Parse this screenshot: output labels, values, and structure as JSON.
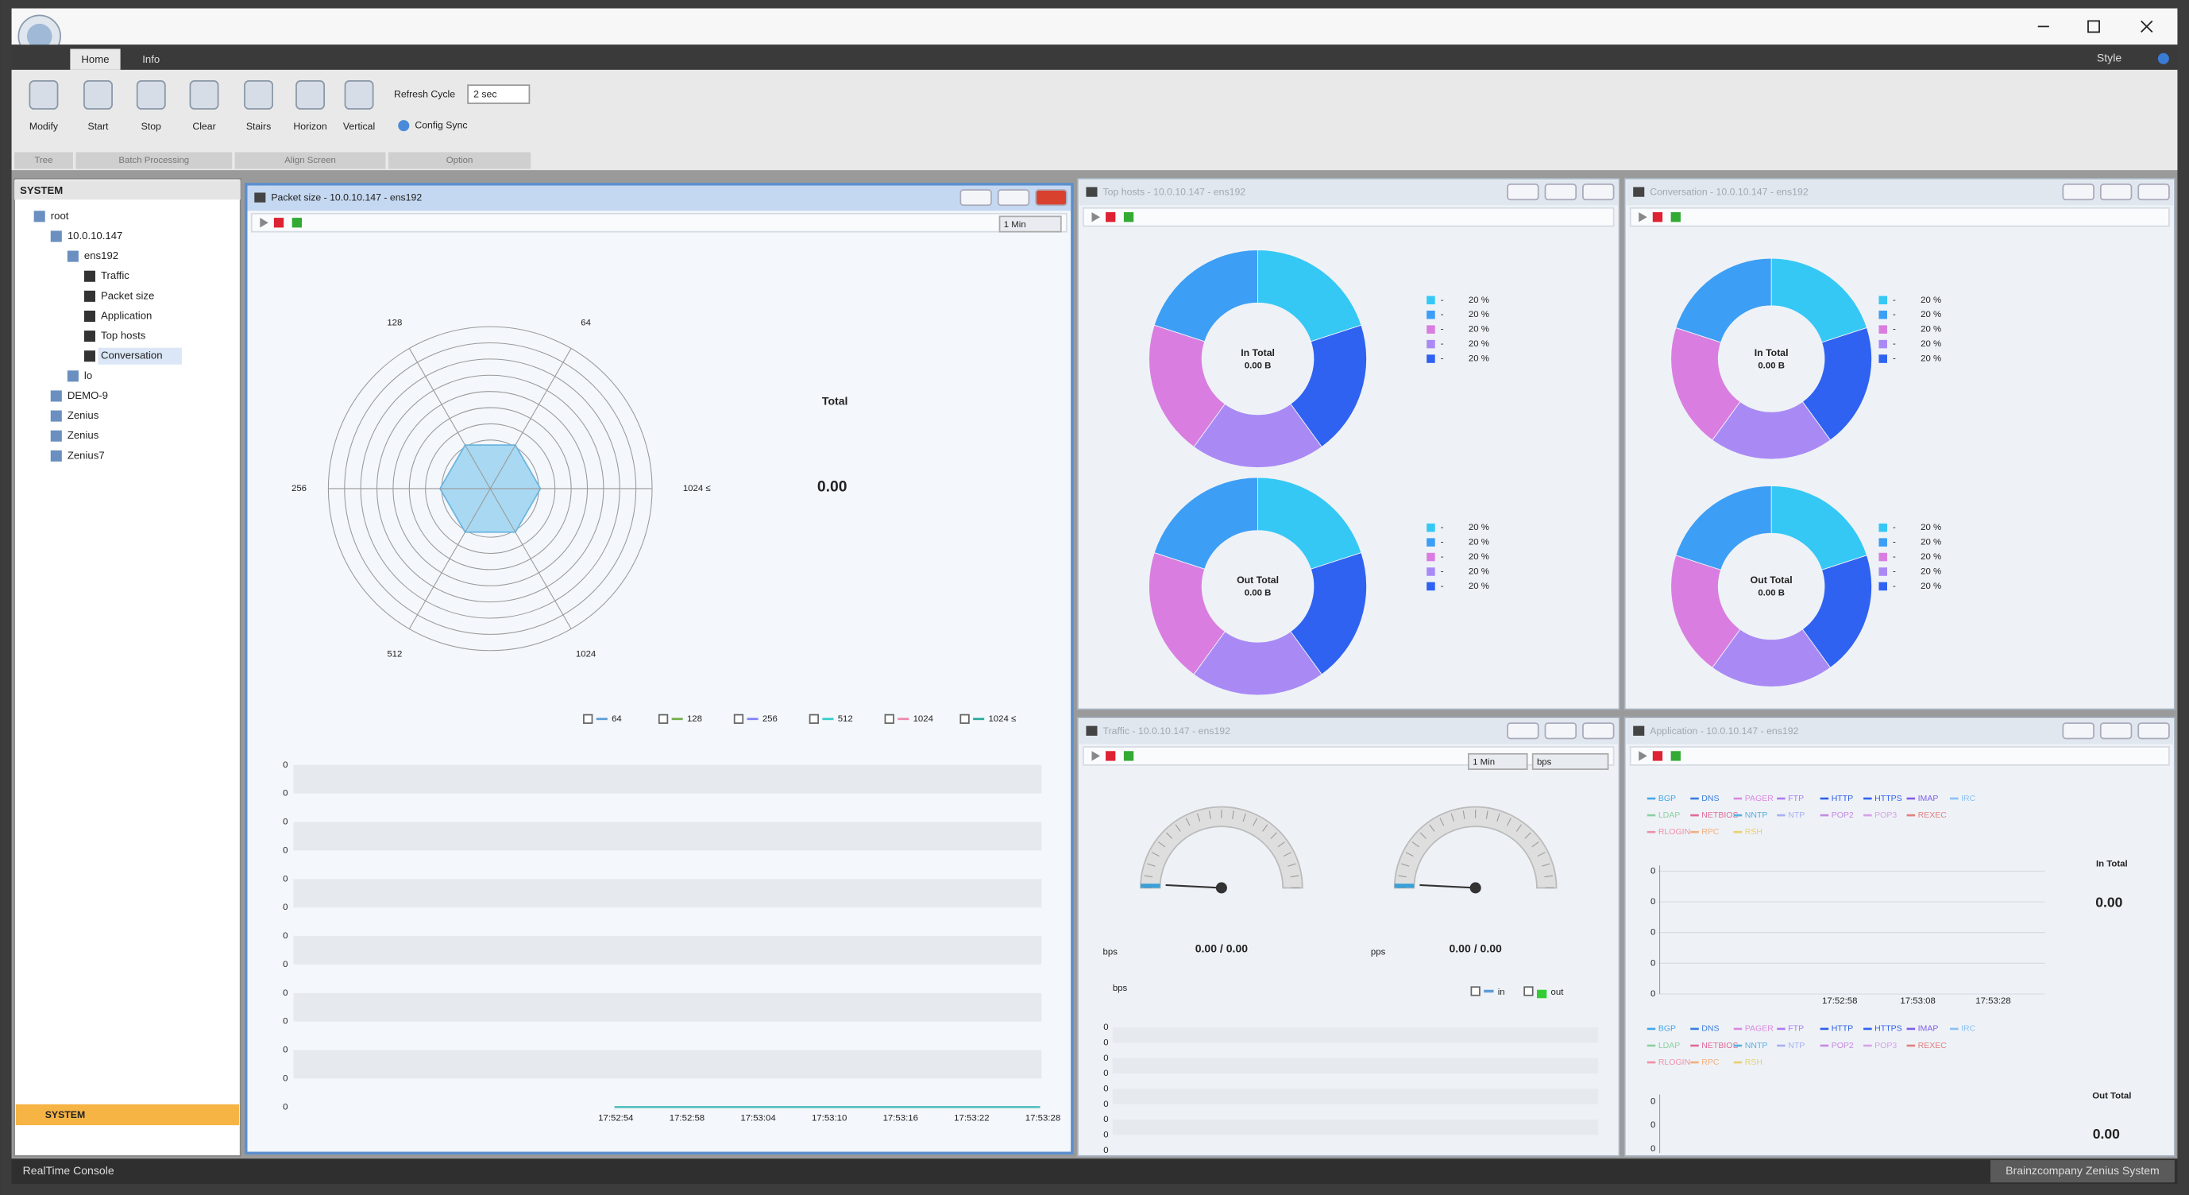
{
  "window": {
    "style_menu": "Style"
  },
  "ribbon": {
    "tabs": [
      "Home",
      "Info"
    ],
    "buttons": [
      "Modify",
      "Start",
      "Stop",
      "Clear",
      "Stairs",
      "Horizon",
      "Vertical"
    ],
    "refresh_label": "Refresh Cycle",
    "refresh_value": "2 sec",
    "config_sync": "Config Sync",
    "groups": [
      "Tree",
      "Batch Processing",
      "Align Screen",
      "Option"
    ]
  },
  "sidebar": {
    "header": "SYSTEM",
    "tree": [
      "root",
      "10.0.10.147",
      "ens192",
      "Traffic",
      "Packet size",
      "Application",
      "Top hosts",
      "Conversation",
      "lo",
      "DEMO-9",
      "Zenius",
      "Zenius",
      "Zenius7"
    ],
    "footer": "SYSTEM"
  },
  "packet_size": {
    "title": "Packet size - 10.0.10.147 - ens192",
    "interval": "1 Min",
    "radar_labels": [
      "64",
      "128",
      "256",
      "512",
      "1024",
      "1024 ≤"
    ],
    "total_label": "Total",
    "total_value": "0.00",
    "legend": [
      "64",
      "128",
      "256",
      "512",
      "1024",
      "1024 ≤"
    ],
    "yticks": [
      "0",
      "0",
      "0",
      "0",
      "0",
      "0",
      "0",
      "0",
      "0",
      "0",
      "0",
      "0",
      "0"
    ],
    "xticks": [
      "17:52:54",
      "17:52:58",
      "17:53:04",
      "17:53:10",
      "17:53:16",
      "17:53:22",
      "17:53:28"
    ]
  },
  "top_hosts": {
    "title": "Top hosts - 10.0.10.147 - ens192",
    "donuts": [
      {
        "label": "In Total",
        "total": "0.00 B",
        "names": [
          "-",
          "-",
          "-",
          "-",
          "-"
        ],
        "values": [
          20,
          20,
          20,
          20,
          20
        ],
        "value_labels": [
          "20 %",
          "20 %",
          "20 %",
          "20 %",
          "20 %"
        ]
      },
      {
        "label": "Out Total",
        "total": "0.00 B",
        "names": [
          "-",
          "-",
          "-",
          "-",
          "-"
        ],
        "values": [
          20,
          20,
          20,
          20,
          20
        ],
        "value_labels": [
          "20 %",
          "20 %",
          "20 %",
          "20 %",
          "20 %"
        ]
      }
    ]
  },
  "conversation": {
    "title": "Conversation - 10.0.10.147 - ens192",
    "donuts": [
      {
        "label": "In Total",
        "total": "0.00 B",
        "names": [
          "-",
          "-",
          "-",
          "-",
          "-"
        ],
        "values": [
          20,
          20,
          20,
          20,
          20
        ],
        "value_labels": [
          "20 %",
          "20 %",
          "20 %",
          "20 %",
          "20 %"
        ]
      },
      {
        "label": "Out Total",
        "total": "0.00 B",
        "names": [
          "-",
          "-",
          "-",
          "-",
          "-"
        ],
        "values": [
          20,
          20,
          20,
          20,
          20
        ],
        "value_labels": [
          "20 %",
          "20 %",
          "20 %",
          "20 %",
          "20 %"
        ]
      }
    ]
  },
  "traffic": {
    "title": "Traffic - 10.0.10.147 - ens192",
    "interval": "1 Min",
    "unit_select": "bps",
    "gauges": [
      {
        "unit": "bps",
        "value": "0.00 / 0.00"
      },
      {
        "unit": "pps",
        "value": "0.00 / 0.00"
      }
    ],
    "legend": [
      "in",
      "out"
    ],
    "y_label": "bps",
    "yticks": [
      "0",
      "0",
      "0",
      "0",
      "0",
      "0",
      "0",
      "0",
      "0"
    ]
  },
  "application": {
    "title": "Application - 10.0.10.147 - ens192",
    "protocols": [
      "BGP",
      "DNS",
      "PAGER",
      "FTP",
      "HTTP",
      "HTTPS",
      "IMAP",
      "IRC",
      "LDAP",
      "NETBIOS",
      "NNTP",
      "NTP",
      "POP2",
      "POP3",
      "REXEC",
      "RLOGIN",
      "RPC",
      "RSH"
    ],
    "in_label": "In Total",
    "in_value": "0.00",
    "out_label": "Out Total",
    "out_value": "0.00",
    "yticks": [
      "0",
      "0",
      "0",
      "0",
      "0"
    ],
    "xticks": [
      "17:52:58",
      "17:53:08",
      "17:53:28"
    ],
    "out_yticks": [
      "0",
      "0",
      "0"
    ]
  },
  "status": {
    "left": "RealTime Console",
    "right": "Brainzcompany Zenius System"
  }
}
